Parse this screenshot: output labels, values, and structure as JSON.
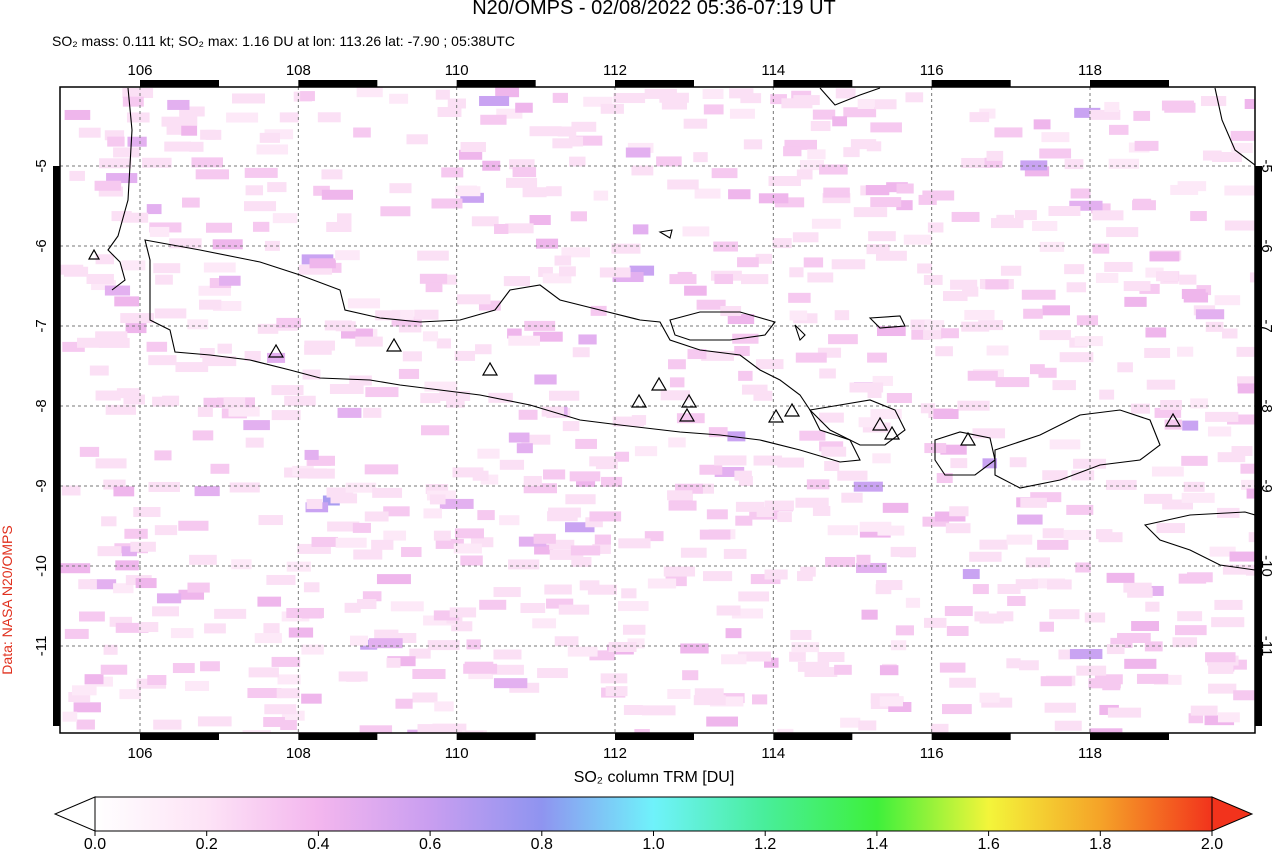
{
  "title": "N20/OMPS - 02/08/2022 05:36-07:19 UT",
  "subtitle": "SO₂ mass: 0.111 kt; SO₂ max: 1.16 DU at lon: 113.26 lat: -7.90 ; 05:38UTC",
  "credit": "Data: NASA N20/OMPS",
  "map": {
    "lon_ticks": [
      106,
      108,
      110,
      112,
      114,
      116,
      118
    ],
    "lat_ticks": [
      -5,
      -6,
      -7,
      -8,
      -9,
      -10,
      -11
    ]
  },
  "colorbar": {
    "label": "SO₂ column TRM [DU]",
    "ticks": [
      {
        "value": 0,
        "label": "0.0"
      },
      {
        "value": 0.2,
        "label": "0.2"
      },
      {
        "value": 0.4,
        "label": "0.4"
      },
      {
        "value": 0.6,
        "label": "0.6"
      },
      {
        "value": 0.8,
        "label": "0.8"
      },
      {
        "value": 1,
        "label": "1.0"
      },
      {
        "value": 1.2,
        "label": "1.2"
      },
      {
        "value": 1.4,
        "label": "1.4"
      },
      {
        "value": 1.6,
        "label": "1.6"
      },
      {
        "value": 1.8,
        "label": "1.8"
      },
      {
        "value": 2,
        "label": "2.0"
      }
    ]
  }
}
